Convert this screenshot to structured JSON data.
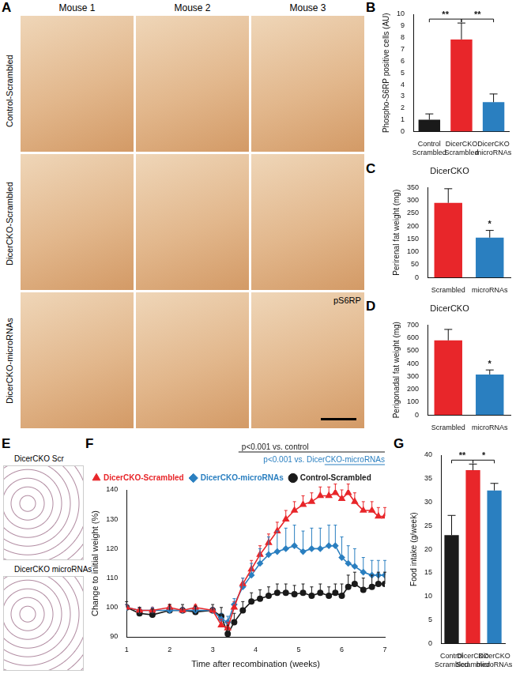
{
  "panels": {
    "A": {
      "letter": "A",
      "columns": [
        "Mouse 1",
        "Mouse 2",
        "Mouse 3"
      ],
      "rows": [
        "Control-Scrambled",
        "DicerCKO-Scrambled",
        "DicerCKO-microRNAs"
      ],
      "stain": "pS6RP"
    },
    "E": {
      "letter": "E",
      "images": [
        "DicerCKO Scr",
        "DicerCKO microRNAs"
      ]
    }
  },
  "chart_data": [
    {
      "panel": "B",
      "type": "bar",
      "categories": [
        "Control Scrambled",
        "DicerCKO Scrambled",
        "DicerCKO microRNAs"
      ],
      "values": [
        1,
        7.85,
        2.5
      ],
      "errors": [
        0.5,
        1.4,
        0.7
      ],
      "colors": [
        "#1a1a1a",
        "#e8262a",
        "#2a7fc0"
      ],
      "y_label": "Phospho-S6RP positive cells (AU)",
      "ylim": [
        0,
        10
      ],
      "yticks": [
        0,
        1,
        2,
        3,
        4,
        5,
        6,
        7,
        8,
        9,
        10
      ],
      "grid": false,
      "annotations": [
        {
          "text": "**",
          "from": 0,
          "to": 1
        },
        {
          "text": "**",
          "from": 1,
          "to": 2
        }
      ]
    },
    {
      "panel": "C",
      "type": "bar",
      "title": "DicerCKO",
      "categories": [
        "Scrambled",
        "microRNAs"
      ],
      "values": [
        290,
        155
      ],
      "errors": [
        55,
        28
      ],
      "colors": [
        "#e8262a",
        "#2a7fc0"
      ],
      "y_label": "Perirenal fat weight (mg)",
      "ylim": [
        0,
        350
      ],
      "yticks": [
        0,
        50,
        100,
        150,
        200,
        250,
        300,
        350
      ],
      "grid": false,
      "annotations": [
        {
          "text": "*",
          "at": 1
        }
      ]
    },
    {
      "panel": "D",
      "type": "bar",
      "title": "DicerCKO",
      "categories": [
        "Scrambled",
        "microRNAs"
      ],
      "values": [
        580,
        315
      ],
      "errors": [
        85,
        35
      ],
      "colors": [
        "#e8262a",
        "#2a7fc0"
      ],
      "y_label": "Perigonadal fat weight (mg)",
      "ylim": [
        0,
        700
      ],
      "yticks": [
        0,
        100,
        200,
        300,
        400,
        500,
        600,
        700
      ],
      "grid": false,
      "annotations": [
        {
          "text": "*",
          "at": 1
        }
      ]
    },
    {
      "panel": "F",
      "type": "line",
      "x_label": "Time after recombination (weeks)",
      "y_label": "Change to initial weight (%)",
      "xlim": [
        1,
        7
      ],
      "xticks": [
        1,
        2,
        3,
        4,
        5,
        6,
        7
      ],
      "ylim": [
        90,
        140
      ],
      "yticks": [
        90,
        100,
        110,
        120,
        130,
        140
      ],
      "grid": false,
      "legend": "upper left",
      "x": [
        1,
        1.3,
        1.6,
        2,
        2.3,
        2.6,
        3,
        3.2,
        3.35,
        3.5,
        3.7,
        3.9,
        4.1,
        4.3,
        4.5,
        4.7,
        4.9,
        5.1,
        5.3,
        5.5,
        5.7,
        5.85,
        6,
        6.15,
        6.3,
        6.5,
        6.7,
        6.85,
        7
      ],
      "series": [
        {
          "name": "DicerCKO-Scrambled",
          "color": "#e8262a",
          "marker": "triangle",
          "values": [
            100,
            99,
            99,
            100,
            99,
            100,
            99,
            94,
            93,
            100,
            108,
            113,
            118,
            122,
            126,
            130,
            133,
            135,
            136,
            138,
            138,
            139,
            137,
            139,
            136,
            133,
            133,
            131,
            131
          ],
          "errors": [
            1,
            1,
            1,
            1,
            1,
            1,
            1,
            2,
            2,
            2,
            2,
            3,
            3,
            3,
            3,
            3,
            3,
            3,
            3,
            3,
            3,
            3,
            3,
            3,
            3,
            3,
            3,
            3,
            3
          ]
        },
        {
          "name": "DicerCKO-microRNAs",
          "color": "#2a7fc0",
          "marker": "diamond",
          "values": [
            100,
            99,
            99,
            99,
            99,
            99,
            99,
            96,
            95,
            101,
            107,
            111,
            115,
            118,
            119,
            120,
            121,
            119,
            120,
            120,
            121,
            121,
            117,
            115,
            114,
            112,
            111,
            111,
            111
          ],
          "errors": [
            1,
            1,
            1,
            1,
            1,
            1,
            1,
            2,
            2,
            2,
            3,
            4,
            5,
            6,
            7,
            7,
            7,
            7,
            7,
            7,
            7,
            7,
            7,
            6,
            6,
            5,
            5,
            5,
            5
          ]
        },
        {
          "name": "Control-Scrambled",
          "color": "#1a1a1a",
          "marker": "circle",
          "values": [
            100,
            98,
            97.5,
            99,
            99,
            98.5,
            99,
            97,
            91,
            95,
            99,
            102,
            103,
            104,
            105,
            105,
            104.5,
            105,
            104,
            105,
            104,
            105,
            104,
            107,
            108,
            106,
            107,
            108,
            108
          ],
          "errors": [
            2,
            2,
            2,
            2,
            2,
            2,
            2,
            3,
            3,
            3,
            3,
            3,
            3,
            3,
            3,
            3,
            3,
            3,
            3,
            3,
            3,
            3,
            4,
            4,
            4,
            4,
            4,
            4,
            4
          ]
        }
      ],
      "annotations": [
        {
          "text": "p<0.001 vs. control",
          "x_from": 3.6,
          "x_to": 7,
          "color": "#1a1a1a"
        },
        {
          "text": "p<0.001 vs. DicerCKO-microRNAs",
          "x_from": 5.6,
          "x_to": 7,
          "color": "#2a7fc0"
        }
      ]
    },
    {
      "panel": "G",
      "type": "bar",
      "categories": [
        "Control Scrambled",
        "DicerCKO Scrambled",
        "DicerCKO microRNAs"
      ],
      "values": [
        23,
        36.8,
        32.5
      ],
      "errors": [
        4.2,
        1.3,
        1.5
      ],
      "colors": [
        "#1a1a1a",
        "#e8262a",
        "#2a7fc0"
      ],
      "y_label": "Food intake (g/week)",
      "ylim": [
        0,
        40
      ],
      "yticks": [
        0,
        5,
        10,
        15,
        20,
        25,
        30,
        35,
        40
      ],
      "grid": false,
      "annotations": [
        {
          "text": "**",
          "from": 0,
          "to": 1
        },
        {
          "text": "*",
          "from": 1,
          "to": 2
        }
      ]
    }
  ]
}
